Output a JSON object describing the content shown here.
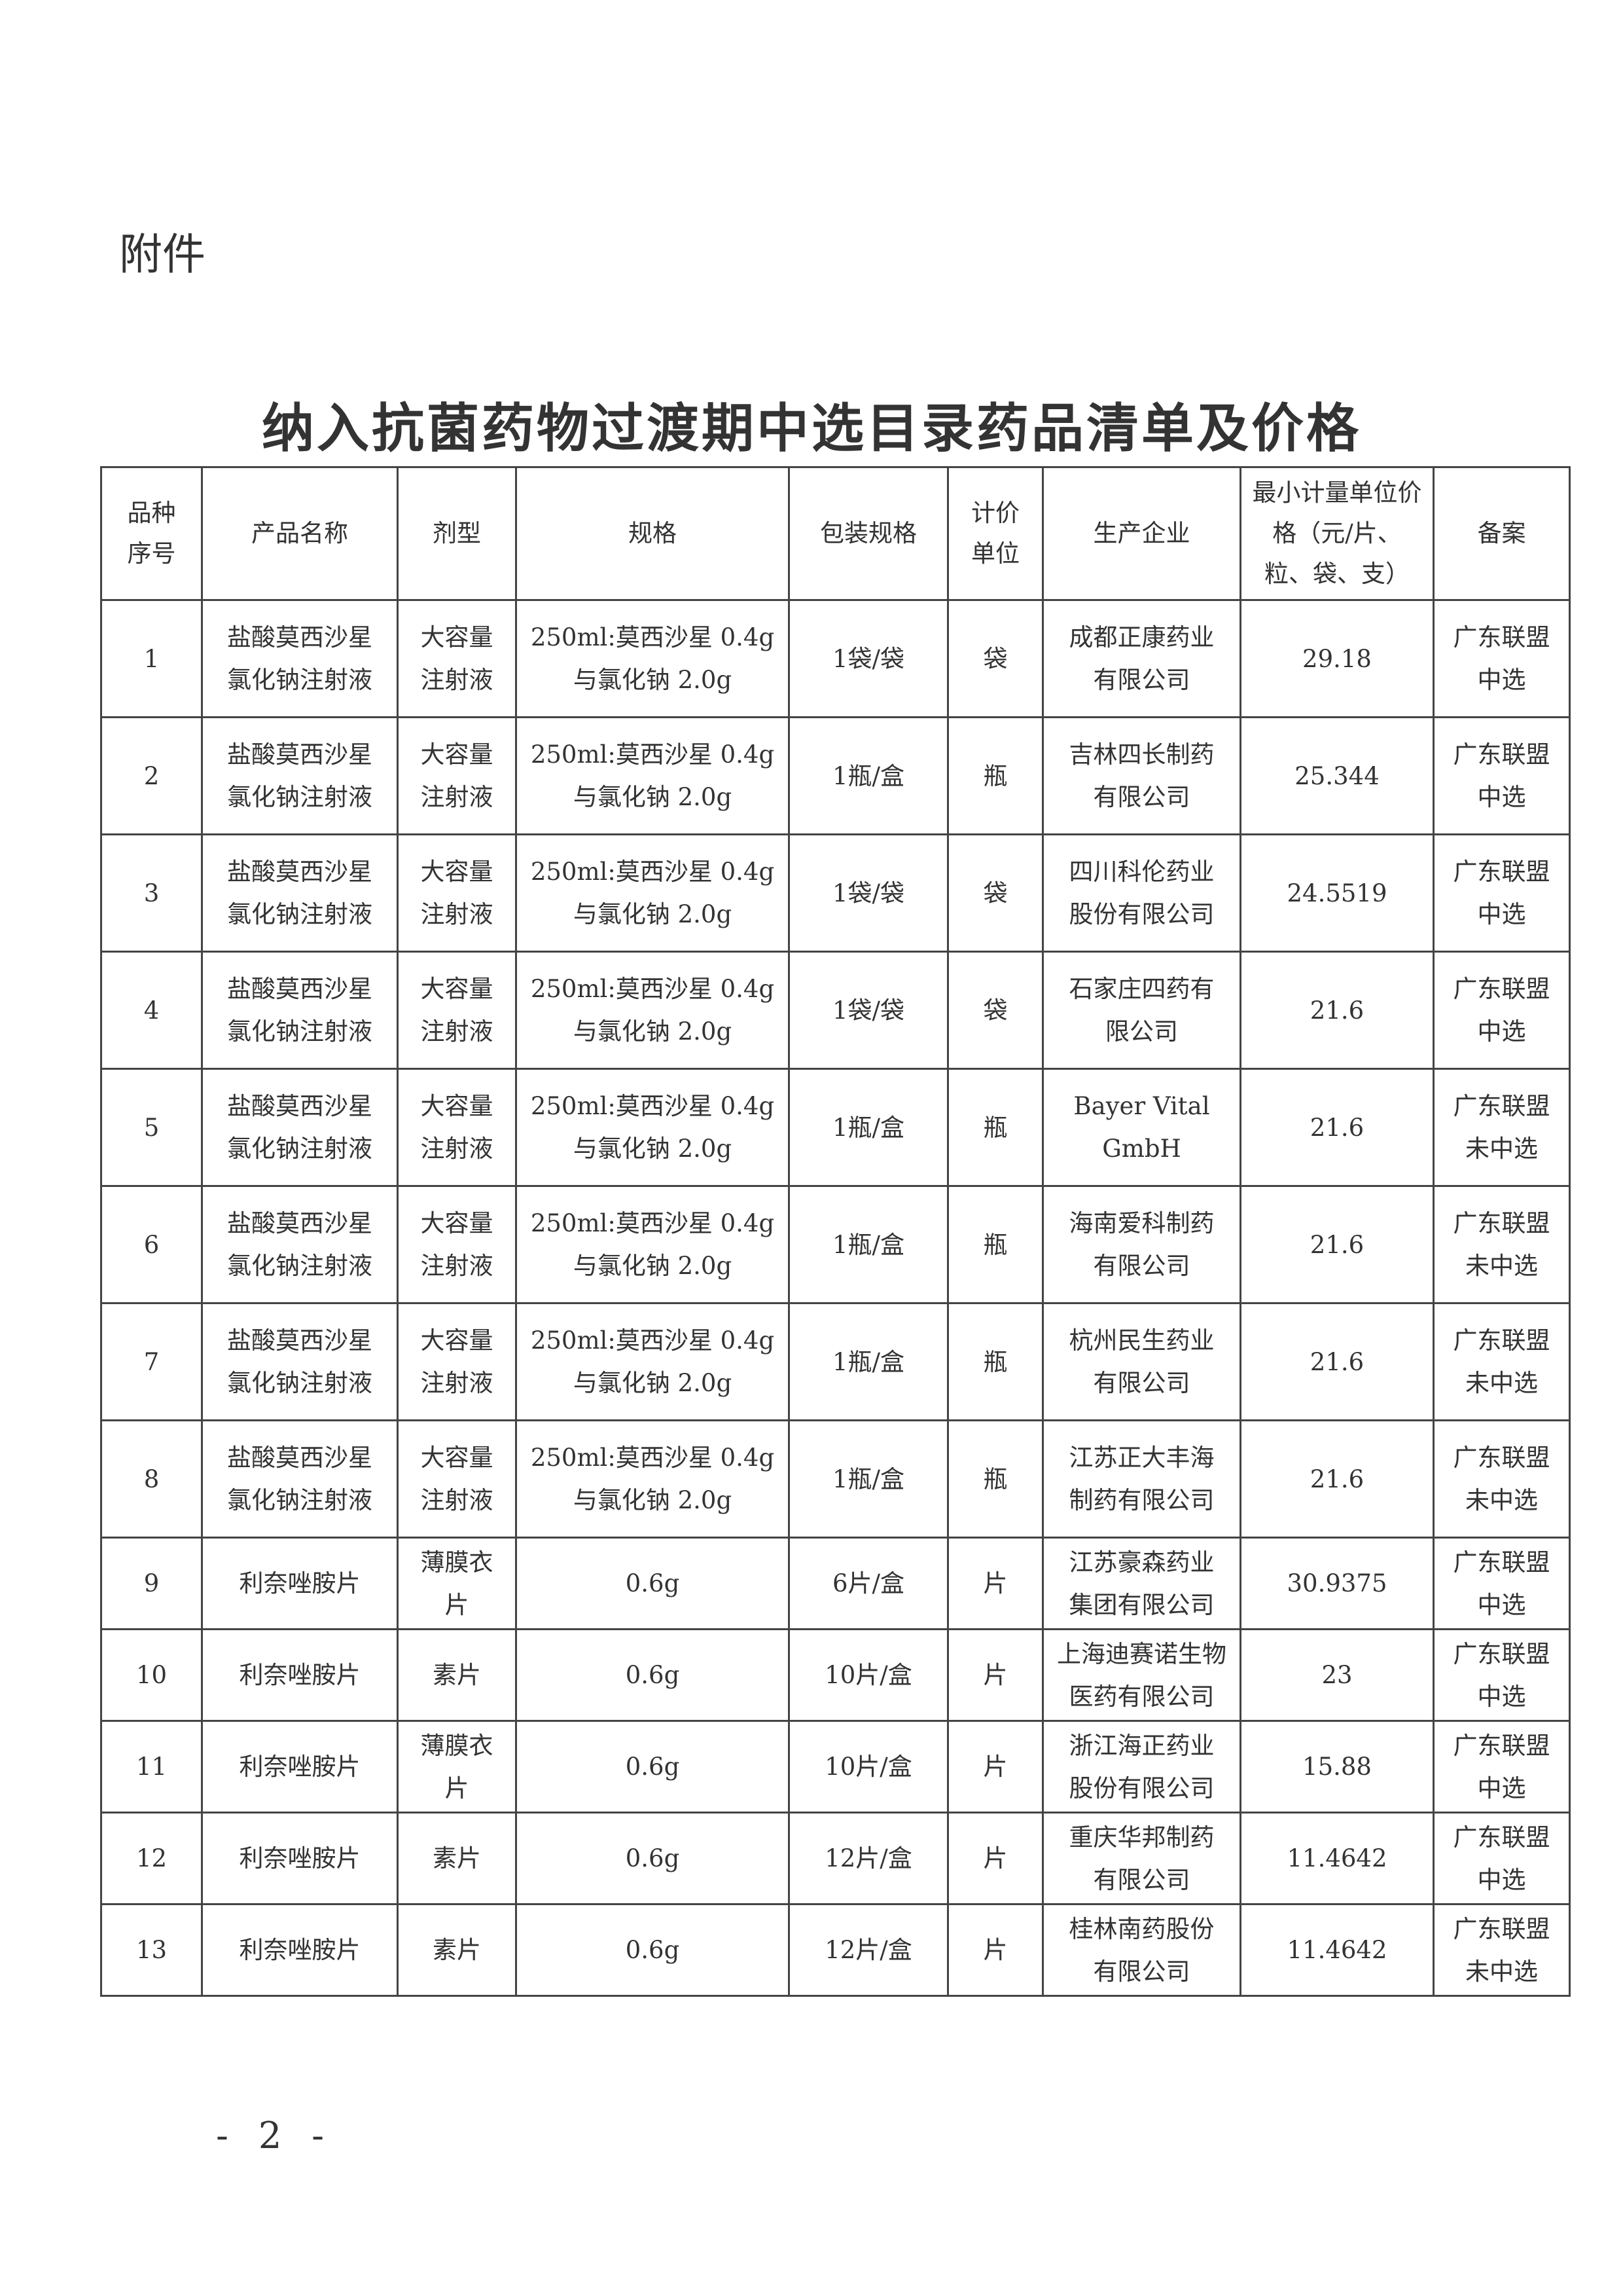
{
  "attachment_label": "附件",
  "title": "纳入抗菌药物过渡期中选目录药品清单及价格",
  "table": {
    "headers": [
      [
        "品种",
        "序号"
      ],
      [
        "产品名称"
      ],
      [
        "剂型"
      ],
      [
        "规格"
      ],
      [
        "包装规格"
      ],
      [
        "计价",
        "单位"
      ],
      [
        "生产企业"
      ],
      [
        "最小计量单位价",
        "格（元/片、",
        "粒、袋、支）"
      ],
      [
        "备案"
      ]
    ],
    "rows": [
      {
        "no": "1",
        "name": [
          "盐酸莫西沙星",
          "氯化钠注射液"
        ],
        "form": [
          "大容量",
          "注射液"
        ],
        "spec": [
          "250ml:莫西沙星 0.4g",
          "与氯化钠 2.0g"
        ],
        "pack": "1袋/袋",
        "unit": "袋",
        "maker": [
          "成都正康药业",
          "有限公司"
        ],
        "price": "29.18",
        "status": [
          "广东联盟",
          "中选"
        ]
      },
      {
        "no": "2",
        "name": [
          "盐酸莫西沙星",
          "氯化钠注射液"
        ],
        "form": [
          "大容量",
          "注射液"
        ],
        "spec": [
          "250ml:莫西沙星 0.4g",
          "与氯化钠 2.0g"
        ],
        "pack": "1瓶/盒",
        "unit": "瓶",
        "maker": [
          "吉林四长制药",
          "有限公司"
        ],
        "price": "25.344",
        "status": [
          "广东联盟",
          "中选"
        ]
      },
      {
        "no": "3",
        "name": [
          "盐酸莫西沙星",
          "氯化钠注射液"
        ],
        "form": [
          "大容量",
          "注射液"
        ],
        "spec": [
          "250ml:莫西沙星 0.4g",
          "与氯化钠 2.0g"
        ],
        "pack": "1袋/袋",
        "unit": "袋",
        "maker": [
          "四川科伦药业",
          "股份有限公司"
        ],
        "price": "24.5519",
        "status": [
          "广东联盟",
          "中选"
        ]
      },
      {
        "no": "4",
        "name": [
          "盐酸莫西沙星",
          "氯化钠注射液"
        ],
        "form": [
          "大容量",
          "注射液"
        ],
        "spec": [
          "250ml:莫西沙星 0.4g",
          "与氯化钠 2.0g"
        ],
        "pack": "1袋/袋",
        "unit": "袋",
        "maker": [
          "石家庄四药有",
          "限公司"
        ],
        "price": "21.6",
        "status": [
          "广东联盟",
          "中选"
        ]
      },
      {
        "no": "5",
        "name": [
          "盐酸莫西沙星",
          "氯化钠注射液"
        ],
        "form": [
          "大容量",
          "注射液"
        ],
        "spec": [
          "250ml:莫西沙星 0.4g",
          "与氯化钠 2.0g"
        ],
        "pack": "1瓶/盒",
        "unit": "瓶",
        "maker": [
          "Bayer Vital",
          "GmbH"
        ],
        "price": "21.6",
        "status": [
          "广东联盟",
          "未中选"
        ]
      },
      {
        "no": "6",
        "name": [
          "盐酸莫西沙星",
          "氯化钠注射液"
        ],
        "form": [
          "大容量",
          "注射液"
        ],
        "spec": [
          "250ml:莫西沙星 0.4g",
          "与氯化钠 2.0g"
        ],
        "pack": "1瓶/盒",
        "unit": "瓶",
        "maker": [
          "海南爱科制药",
          "有限公司"
        ],
        "price": "21.6",
        "status": [
          "广东联盟",
          "未中选"
        ]
      },
      {
        "no": "7",
        "name": [
          "盐酸莫西沙星",
          "氯化钠注射液"
        ],
        "form": [
          "大容量",
          "注射液"
        ],
        "spec": [
          "250ml:莫西沙星 0.4g",
          "与氯化钠 2.0g"
        ],
        "pack": "1瓶/盒",
        "unit": "瓶",
        "maker": [
          "杭州民生药业",
          "有限公司"
        ],
        "price": "21.6",
        "status": [
          "广东联盟",
          "未中选"
        ]
      },
      {
        "no": "8",
        "name": [
          "盐酸莫西沙星",
          "氯化钠注射液"
        ],
        "form": [
          "大容量",
          "注射液"
        ],
        "spec": [
          "250ml:莫西沙星 0.4g",
          "与氯化钠 2.0g"
        ],
        "pack": "1瓶/盒",
        "unit": "瓶",
        "maker": [
          "江苏正大丰海",
          "制药有限公司"
        ],
        "price": "21.6",
        "status": [
          "广东联盟",
          "未中选"
        ]
      },
      {
        "no": "9",
        "name": [
          "利奈唑胺片"
        ],
        "form": [
          "薄膜衣",
          "片"
        ],
        "spec": [
          "0.6g"
        ],
        "pack": "6片/盒",
        "unit": "片",
        "maker": [
          "江苏豪森药业",
          "集团有限公司"
        ],
        "price": "30.9375",
        "status": [
          "广东联盟",
          "中选"
        ]
      },
      {
        "no": "10",
        "name": [
          "利奈唑胺片"
        ],
        "form": [
          "素片"
        ],
        "spec": [
          "0.6g"
        ],
        "pack": "10片/盒",
        "unit": "片",
        "maker": [
          "上海迪赛诺生物",
          "医药有限公司"
        ],
        "price": "23",
        "status": [
          "广东联盟",
          "中选"
        ]
      },
      {
        "no": "11",
        "name": [
          "利奈唑胺片"
        ],
        "form": [
          "薄膜衣",
          "片"
        ],
        "spec": [
          "0.6g"
        ],
        "pack": "10片/盒",
        "unit": "片",
        "maker": [
          "浙江海正药业",
          "股份有限公司"
        ],
        "price": "15.88",
        "status": [
          "广东联盟",
          "中选"
        ]
      },
      {
        "no": "12",
        "name": [
          "利奈唑胺片"
        ],
        "form": [
          "素片"
        ],
        "spec": [
          "0.6g"
        ],
        "pack": "12片/盒",
        "unit": "片",
        "maker": [
          "重庆华邦制药",
          "有限公司"
        ],
        "price": "11.4642",
        "status": [
          "广东联盟",
          "中选"
        ]
      },
      {
        "no": "13",
        "name": [
          "利奈唑胺片"
        ],
        "form": [
          "素片"
        ],
        "spec": [
          "0.6g"
        ],
        "pack": "12片/盒",
        "unit": "片",
        "maker": [
          "桂林南药股份",
          "有限公司"
        ],
        "price": "11.4642",
        "status": [
          "广东联盟",
          "未中选"
        ]
      }
    ]
  },
  "page_number": "- 2 -"
}
